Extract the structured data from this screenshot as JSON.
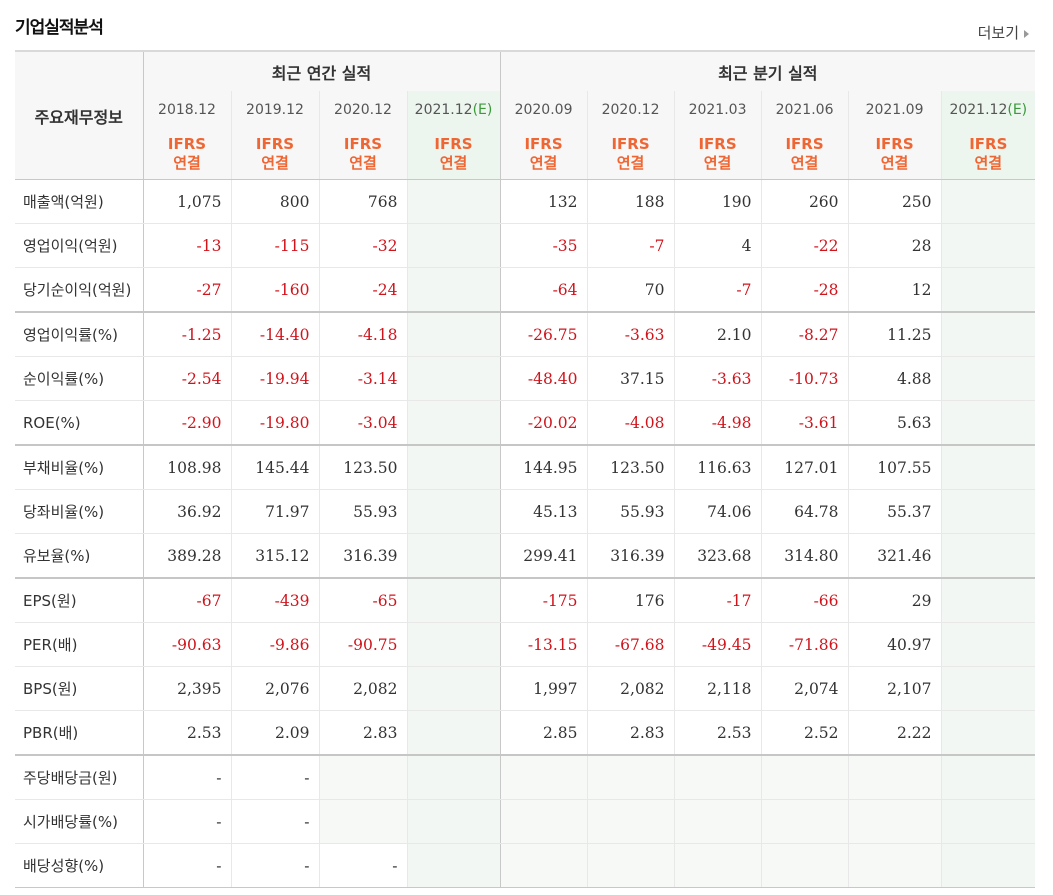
{
  "title": "기업실적분석",
  "more": "더보기",
  "row_header": "주요재무정보",
  "groups": {
    "annual": "최근 연간 실적",
    "quarter": "최근 분기 실적"
  },
  "periods": [
    {
      "label": "2018.12",
      "estimate": false
    },
    {
      "label": "2019.12",
      "estimate": false
    },
    {
      "label": "2020.12",
      "estimate": false
    },
    {
      "label": "2021.12",
      "estimate": true
    },
    {
      "label": "2020.09",
      "estimate": false
    },
    {
      "label": "2020.12",
      "estimate": false
    },
    {
      "label": "2021.03",
      "estimate": false
    },
    {
      "label": "2021.06",
      "estimate": false
    },
    {
      "label": "2021.09",
      "estimate": false
    },
    {
      "label": "2021.12",
      "estimate": true
    }
  ],
  "estimate_mark": "(E)",
  "basis_line1": "IFRS",
  "basis_line2": "연결",
  "rows": [
    {
      "label": "매출액(억원)",
      "values": [
        "1,075",
        "800",
        "768",
        "",
        "132",
        "188",
        "190",
        "260",
        "250",
        ""
      ]
    },
    {
      "label": "영업이익(억원)",
      "values": [
        "-13",
        "-115",
        "-32",
        "",
        "-35",
        "-7",
        "4",
        "-22",
        "28",
        ""
      ]
    },
    {
      "label": "당기순이익(억원)",
      "values": [
        "-27",
        "-160",
        "-24",
        "",
        "-64",
        "70",
        "-7",
        "-28",
        "12",
        ""
      ]
    },
    {
      "label": "영업이익률(%)",
      "values": [
        "-1.25",
        "-14.40",
        "-4.18",
        "",
        "-26.75",
        "-3.63",
        "2.10",
        "-8.27",
        "11.25",
        ""
      ]
    },
    {
      "label": "순이익률(%)",
      "values": [
        "-2.54",
        "-19.94",
        "-3.14",
        "",
        "-48.40",
        "37.15",
        "-3.63",
        "-10.73",
        "4.88",
        ""
      ]
    },
    {
      "label": "ROE(%)",
      "values": [
        "-2.90",
        "-19.80",
        "-3.04",
        "",
        "-20.02",
        "-4.08",
        "-4.98",
        "-3.61",
        "5.63",
        ""
      ]
    },
    {
      "label": "부채비율(%)",
      "values": [
        "108.98",
        "145.44",
        "123.50",
        "",
        "144.95",
        "123.50",
        "116.63",
        "127.01",
        "107.55",
        ""
      ]
    },
    {
      "label": "당좌비율(%)",
      "values": [
        "36.92",
        "71.97",
        "55.93",
        "",
        "45.13",
        "55.93",
        "74.06",
        "64.78",
        "55.37",
        ""
      ]
    },
    {
      "label": "유보율(%)",
      "values": [
        "389.28",
        "315.12",
        "316.39",
        "",
        "299.41",
        "316.39",
        "323.68",
        "314.80",
        "321.46",
        ""
      ]
    },
    {
      "label": "EPS(원)",
      "values": [
        "-67",
        "-439",
        "-65",
        "",
        "-175",
        "176",
        "-17",
        "-66",
        "29",
        ""
      ]
    },
    {
      "label": "PER(배)",
      "values": [
        "-90.63",
        "-9.86",
        "-90.75",
        "",
        "-13.15",
        "-67.68",
        "-49.45",
        "-71.86",
        "40.97",
        ""
      ]
    },
    {
      "label": "BPS(원)",
      "values": [
        "2,395",
        "2,076",
        "2,082",
        "",
        "1,997",
        "2,082",
        "2,118",
        "2,074",
        "2,107",
        ""
      ]
    },
    {
      "label": "PBR(배)",
      "values": [
        "2.53",
        "2.09",
        "2.83",
        "",
        "2.85",
        "2.83",
        "2.53",
        "2.52",
        "2.22",
        ""
      ]
    },
    {
      "label": "주당배당금(원)",
      "values": [
        "-",
        "-",
        "",
        "",
        "",
        "",
        "",
        "",
        "",
        ""
      ]
    },
    {
      "label": "시가배당률(%)",
      "values": [
        "-",
        "-",
        "",
        "",
        "",
        "",
        "",
        "",
        "",
        ""
      ]
    },
    {
      "label": "배당성향(%)",
      "values": [
        "-",
        "-",
        "-",
        "",
        "",
        "",
        "",
        "",
        "",
        ""
      ]
    }
  ],
  "colors": {
    "negative": "#d0141c",
    "basis": "#ee6633",
    "estimate": "#3a9a3a"
  }
}
